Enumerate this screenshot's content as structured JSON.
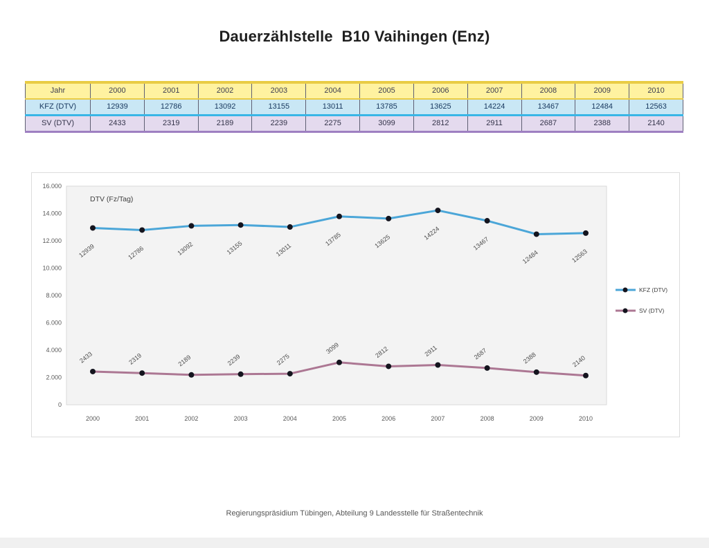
{
  "page": {
    "title": "Dauerzählstelle  B10 Vaihingen (Enz)",
    "footer": "Regierungspräsidium Tübingen, Abteilung 9 Landesstelle für Straßentechnik"
  },
  "table": {
    "header_label": "Jahr",
    "header_bg": "#FFF2A0",
    "header_border": "#E9CC45",
    "years": [
      "2000",
      "2001",
      "2002",
      "2003",
      "2004",
      "2005",
      "2006",
      "2007",
      "2008",
      "2009",
      "2010"
    ],
    "rows": [
      {
        "label": "KFZ (DTV)",
        "values": [
          12939,
          12786,
          13092,
          13155,
          13011,
          13785,
          13625,
          14224,
          13467,
          12484,
          12563
        ],
        "bg": "#C9E7F5",
        "border": "#38B6E6",
        "text": "#17375E"
      },
      {
        "label": "SV (DTV)",
        "values": [
          2433,
          2319,
          2189,
          2239,
          2275,
          3099,
          2812,
          2911,
          2687,
          2388,
          2140
        ],
        "bg": "#E4DAEE",
        "border": "#9E7FC1",
        "text": "#34344a"
      }
    ]
  },
  "chart_data": {
    "type": "line",
    "title": "DTV (Fz/Tag)",
    "categories": [
      "2000",
      "2001",
      "2002",
      "2003",
      "2004",
      "2005",
      "2006",
      "2007",
      "2008",
      "2009",
      "2010"
    ],
    "series": [
      {
        "name": "KFZ (DTV)",
        "slug": "kfz-dtv",
        "color": "#4BA6D8",
        "label_position": "below",
        "values": [
          12939,
          12786,
          13092,
          13155,
          13011,
          13785,
          13625,
          14224,
          13467,
          12484,
          12563
        ]
      },
      {
        "name": "SV (DTV)",
        "slug": "sv-dtv",
        "color": "#AC7793",
        "label_position": "above",
        "values": [
          2433,
          2319,
          2189,
          2239,
          2275,
          3099,
          2812,
          2911,
          2687,
          2388,
          2140
        ]
      }
    ],
    "xlabel": "",
    "ylabel": "DTV (Fz/Tag)",
    "ylim": [
      0,
      16000
    ],
    "ytick_step": 2000,
    "ytick_labels": [
      "0",
      "2.000",
      "4.000",
      "6.000",
      "8.000",
      "10.000",
      "12.000",
      "14.000",
      "16.000"
    ],
    "grid": false,
    "legend_position": "right",
    "marker_color": "#14141e",
    "plot_bg": "#F3F3F3"
  }
}
